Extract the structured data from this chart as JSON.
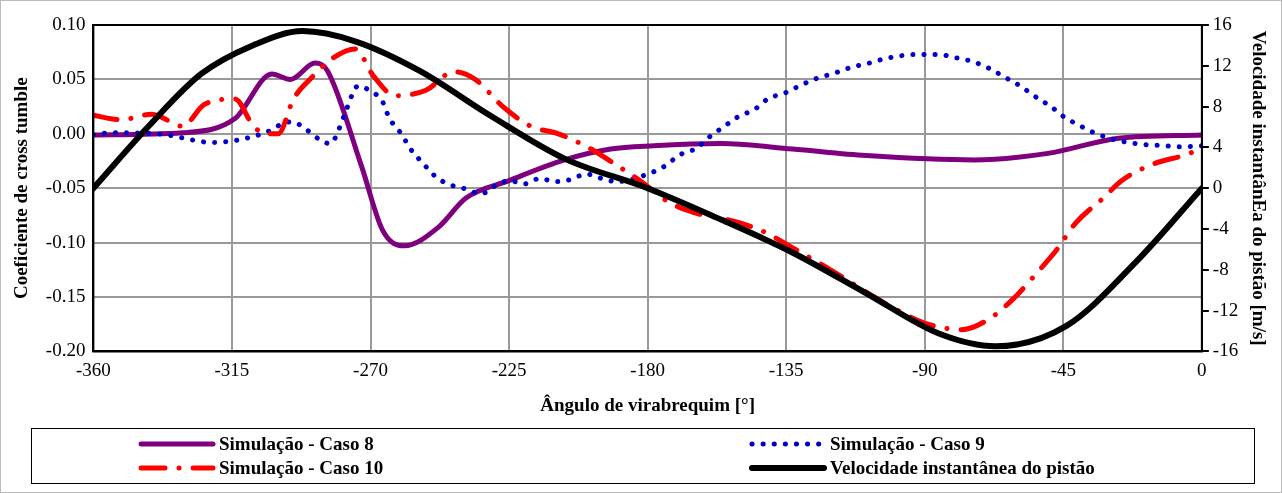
{
  "chart_data": {
    "type": "line",
    "xlabel": "Ângulo de virabrequim [°]",
    "ylabel": "Coeficiente de cross tumble",
    "y2label": "Velocidade instantânEa do pistão [m/s]",
    "xlim": [
      -360,
      0
    ],
    "xticks": [
      -360,
      -315,
      -270,
      -225,
      -180,
      -135,
      -90,
      -45,
      0
    ],
    "ylim": [
      -0.2,
      0.1
    ],
    "yticks": [
      {
        "value": -0.2,
        "label": "-0.20"
      },
      {
        "value": -0.15,
        "label": "-0.15"
      },
      {
        "value": -0.1,
        "label": "-0.10"
      },
      {
        "value": -0.05,
        "label": "-0.05"
      },
      {
        "value": 0,
        "label": "0.00"
      },
      {
        "value": 0.05,
        "label": "0.05"
      },
      {
        "value": 0.1,
        "label": "0.10"
      }
    ],
    "y2lim": [
      -16,
      16
    ],
    "y2ticks": [
      -16,
      -12,
      -8,
      -4,
      0,
      4,
      8,
      12,
      16
    ],
    "grid": true,
    "legend": "bottom",
    "marker": "none",
    "series": [
      {
        "name": "Simulação - Caso 8",
        "color": "#7f007f",
        "line_style": "solid",
        "x": [
          -360,
          -331,
          -314,
          -302,
          -296,
          -288,
          -284,
          -273,
          -266,
          -259,
          -248,
          -239,
          -225,
          -207,
          -192,
          -178,
          -156,
          -133,
          -109,
          -74,
          -50,
          -27,
          0
        ],
        "values": [
          -0.001,
          0.001,
          0.014,
          0.055,
          0.05,
          0.065,
          0.058,
          -0.029,
          -0.089,
          -0.103,
          -0.086,
          -0.059,
          -0.043,
          -0.024,
          -0.014,
          -0.011,
          -0.009,
          -0.014,
          -0.02,
          -0.024,
          -0.018,
          -0.004,
          -0.001
        ]
      },
      {
        "name": "Simulação - Caso 9",
        "color": "#0000cc",
        "line_style": "dotted",
        "x": [
          -360,
          -354,
          -339,
          -321,
          -305,
          -296,
          -283,
          -280,
          -278,
          -274,
          -271,
          -266,
          -264,
          -260,
          -257,
          -253,
          -249,
          -245,
          -240,
          -234,
          -229,
          -225,
          -220,
          -215,
          -210,
          -205,
          -200,
          -195,
          -190,
          -180,
          -174,
          -170,
          -164,
          -160,
          -155,
          -151,
          -145,
          -141,
          -135,
          -130,
          -125,
          -119,
          -114,
          -108,
          -103,
          -97,
          -92,
          -86,
          -80,
          -74,
          -69,
          -64,
          -59,
          -54,
          -49,
          -45,
          -40,
          -35,
          -29,
          -24,
          -18,
          -12,
          -7,
          0
        ],
        "values": [
          -0.001,
          0.001,
          0.0,
          -0.008,
          0.0,
          0.011,
          -0.009,
          0.006,
          0.021,
          0.044,
          0.041,
          0.029,
          0.015,
          0.0,
          -0.014,
          -0.027,
          -0.039,
          -0.046,
          -0.05,
          -0.055,
          -0.047,
          -0.043,
          -0.046,
          -0.041,
          -0.044,
          -0.042,
          -0.037,
          -0.041,
          -0.044,
          -0.037,
          -0.029,
          -0.02,
          -0.013,
          -0.003,
          0.007,
          0.015,
          0.023,
          0.032,
          0.038,
          0.045,
          0.051,
          0.056,
          0.061,
          0.065,
          0.069,
          0.072,
          0.073,
          0.073,
          0.07,
          0.066,
          0.06,
          0.052,
          0.044,
          0.034,
          0.025,
          0.016,
          0.008,
          0.001,
          -0.005,
          -0.008,
          -0.01,
          -0.011,
          -0.012,
          -0.011
        ]
      },
      {
        "name": "Simulação - Caso 10",
        "color": "#ff0000",
        "line_style": "dashdot",
        "x": [
          -360,
          -351,
          -341,
          -331,
          -324,
          -314,
          -308,
          -304,
          -300,
          -295,
          -289,
          -282,
          -275,
          -269,
          -262,
          -252,
          -243,
          -236,
          -227,
          -218,
          -209,
          -199,
          -190,
          -182,
          -173,
          -163,
          -154,
          -143,
          -134,
          -126,
          -116,
          -107,
          -99,
          -89,
          -78,
          -69,
          -61,
          -53,
          -47,
          -41,
          -32,
          -26,
          -16,
          -5,
          0
        ],
        "values": [
          0.017,
          0.013,
          0.018,
          0.007,
          0.027,
          0.032,
          0.007,
          0.0,
          0.0,
          0.032,
          0.052,
          0.07,
          0.078,
          0.053,
          0.035,
          0.04,
          0.057,
          0.05,
          0.025,
          0.007,
          0.0,
          -0.013,
          -0.029,
          -0.044,
          -0.063,
          -0.074,
          -0.079,
          -0.089,
          -0.103,
          -0.116,
          -0.133,
          -0.149,
          -0.162,
          -0.175,
          -0.18,
          -0.17,
          -0.151,
          -0.126,
          -0.106,
          -0.082,
          -0.059,
          -0.043,
          -0.028,
          -0.019,
          -0.013
        ]
      },
      {
        "name": "Velocidade instantânea do pistão",
        "color": "#000000",
        "line_style": "solid",
        "axis": "y2",
        "x": [
          -360,
          -342,
          -325,
          -309,
          -292,
          -275,
          -254,
          -231,
          -207,
          -180,
          -156,
          -133,
          -109,
          -85,
          -67,
          -44,
          -21,
          0
        ],
        "values": [
          0,
          6.1,
          11.2,
          13.9,
          15.4,
          14.4,
          11.5,
          7.1,
          2.9,
          0,
          -3.1,
          -6.3,
          -10.3,
          -14.3,
          -15.5,
          -13.5,
          -7.1,
          0
        ]
      }
    ]
  }
}
